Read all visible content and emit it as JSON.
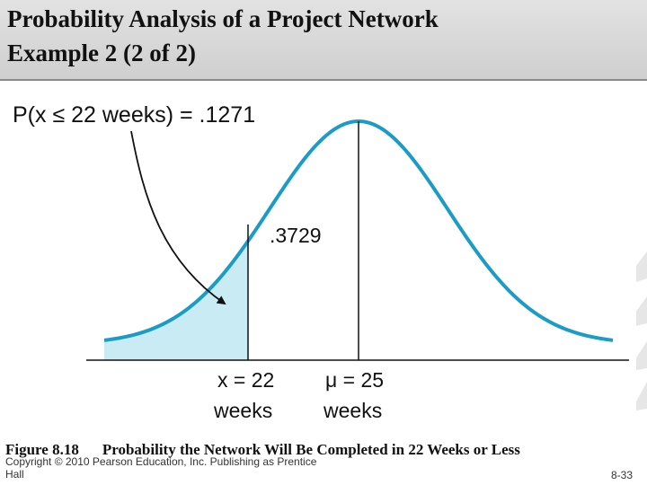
{
  "slide": {
    "title_line1": "Probability Analysis of a Project Network",
    "title_line2": "Example 2 (2 of 2)",
    "caption_figure": "Figure 8.18",
    "caption_text": "Probability the Network Will Be Completed in 22 Weeks or Less",
    "copyright": "Copyright © 2010 Pearson Education, Inc. Publishing as Prentice Hall",
    "slide_number": "8-33"
  },
  "figure": {
    "probability_label": "P(x ≤ 22 weeks) = .1271",
    "complement_label": ".3729",
    "x_label_line1": "x = 22",
    "x_label_line2": "weeks",
    "mu_label_line1": "μ = 25",
    "mu_label_line2": "weeks",
    "colors": {
      "curve": "#1b9cc7",
      "shaded_area": "#c9ebf3",
      "background": "#ffffff",
      "title_bar": "#d6d6d6"
    }
  }
}
